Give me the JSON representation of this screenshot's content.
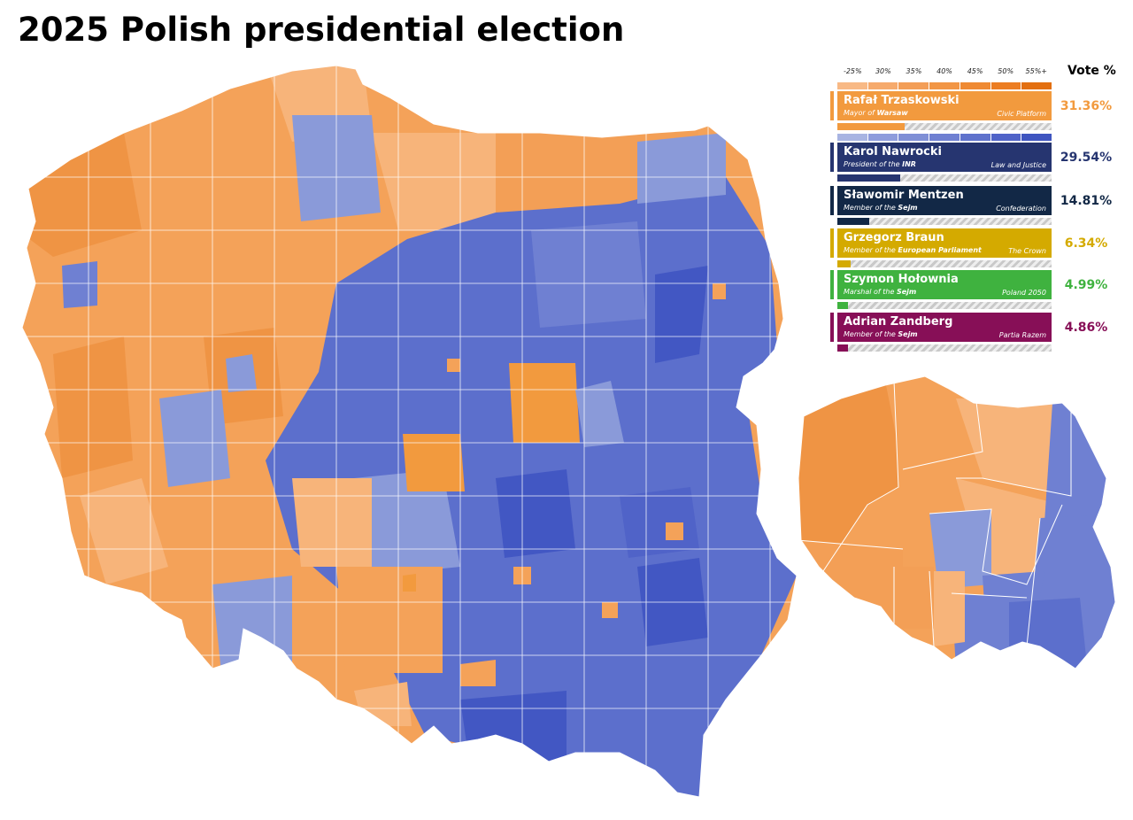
{
  "title": "2025 Polish presidential election",
  "legend": {
    "scale_labels": [
      "-25%",
      "30%",
      "35%",
      "40%",
      "45%",
      "50%",
      "55%+"
    ],
    "vote_header": "Vote %",
    "orange_scale": [
      "#f8b985",
      "#f6aa6c",
      "#f39e57",
      "#f29645",
      "#ef8a33",
      "#ec7d22",
      "#e36f10"
    ],
    "blue_scale": [
      "#a8b4e2",
      "#8e9cdc",
      "#7f8fd6",
      "#6f80d2",
      "#5f72cc",
      "#5063c8",
      "#3f55c0"
    ],
    "candidates": [
      {
        "name": "Rafał Trzaskowski",
        "role_prefix": "Mayor of ",
        "role_bold": "Warsaw",
        "party": "Civic Platform",
        "pct": "31.36%",
        "value": 31.36,
        "color": "#f29a3e",
        "text_color": "#ffffff"
      },
      {
        "name": "Karol Nawrocki",
        "role_prefix": "President of the ",
        "role_bold": "INR",
        "party": "Law and Justice",
        "pct": "29.54%",
        "value": 29.54,
        "color": "#263570",
        "text_color": "#ffffff"
      },
      {
        "name": "Sławomir Mentzen",
        "role_prefix": "Member of the ",
        "role_bold": "Sejm",
        "party": "Confederation",
        "pct": "14.81%",
        "value": 14.81,
        "color": "#122846",
        "text_color": "#ffffff"
      },
      {
        "name": "Grzegorz Braun",
        "role_prefix": "Member of the ",
        "role_bold": "European Parliament",
        "party": "The Crown",
        "pct": "6.34%",
        "value": 6.34,
        "color": "#d4aa00",
        "text_color": "#ffffff"
      },
      {
        "name": "Szymon Hołownia",
        "role_prefix": "Marshal of the ",
        "role_bold": "Sejm",
        "party": "Poland 2050",
        "pct": "4.99%",
        "value": 4.99,
        "color": "#3fb23f",
        "text_color": "#ffffff"
      },
      {
        "name": "Adrian Zandberg",
        "role_prefix": "Member of the ",
        "role_bold": "Sejm",
        "party": "Partia Razem",
        "pct": "4.86%",
        "value": 4.86,
        "color": "#870f57",
        "text_color": "#ffffff"
      }
    ]
  },
  "colors": {
    "trzaskowski_region": "#f4a259",
    "trzaskowski_light": "#f7b47a",
    "trzaskowski_dark": "#ef8f35",
    "nawrocki_region": "#5c6fcc",
    "nawrocki_light": "#8a9ad9",
    "nawrocki_dark": "#4257c3"
  }
}
